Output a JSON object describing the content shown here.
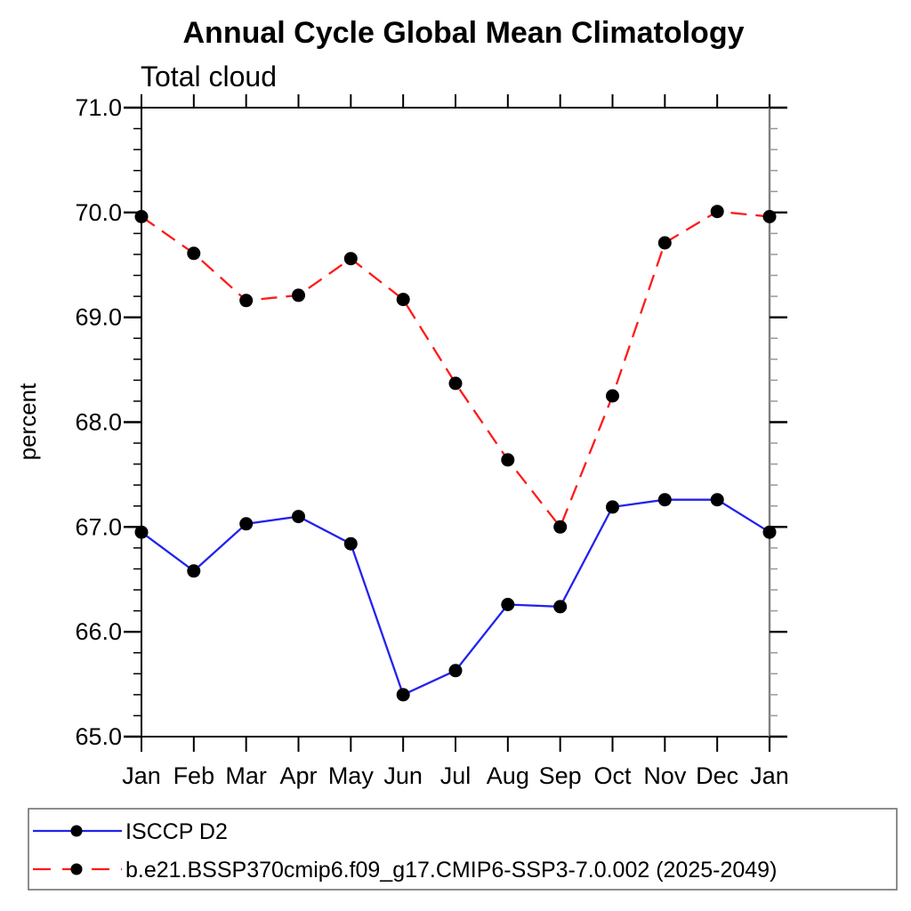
{
  "chart_data": {
    "type": "line",
    "title": "Annual Cycle Global Mean Climatology",
    "subtitle": "Total cloud",
    "ylabel": "percent",
    "x": [
      "Jan",
      "Feb",
      "Mar",
      "Apr",
      "May",
      "Jun",
      "Jul",
      "Aug",
      "Sep",
      "Oct",
      "Nov",
      "Dec",
      "Jan"
    ],
    "ylim": [
      65.0,
      71.0
    ],
    "ytick_labels": [
      "65.0",
      "66.0",
      "67.0",
      "68.0",
      "69.0",
      "70.0",
      "71.0"
    ],
    "ytick_major_step": 1.0,
    "ytick_minor_step": 0.2,
    "grid": false,
    "legend_position": "bottom",
    "series": [
      {
        "name": "ISCCP D2",
        "color": "#2222ee",
        "line_style": "solid",
        "marker": "filled-circle",
        "marker_color": "#000000",
        "values": [
          66.95,
          66.58,
          67.03,
          67.1,
          66.84,
          65.4,
          65.63,
          66.26,
          66.24,
          67.19,
          67.26,
          67.26,
          66.95
        ]
      },
      {
        "name": "b.e21.BSSP370cmip6.f09_g17.CMIP6-SSP3-7.0.002 (2025-2049)",
        "color": "#ff1a1a",
        "line_style": "dashed",
        "marker": "filled-circle",
        "marker_color": "#000000",
        "values": [
          69.96,
          69.61,
          69.16,
          69.21,
          69.56,
          69.17,
          68.37,
          67.64,
          67.0,
          68.25,
          69.71,
          70.01,
          69.96
        ]
      }
    ],
    "colors": {
      "axis": "#000000",
      "right_axis_line": "#7f7f7f",
      "right_minor_tick": "#999999",
      "legend_border": "#666666"
    }
  }
}
